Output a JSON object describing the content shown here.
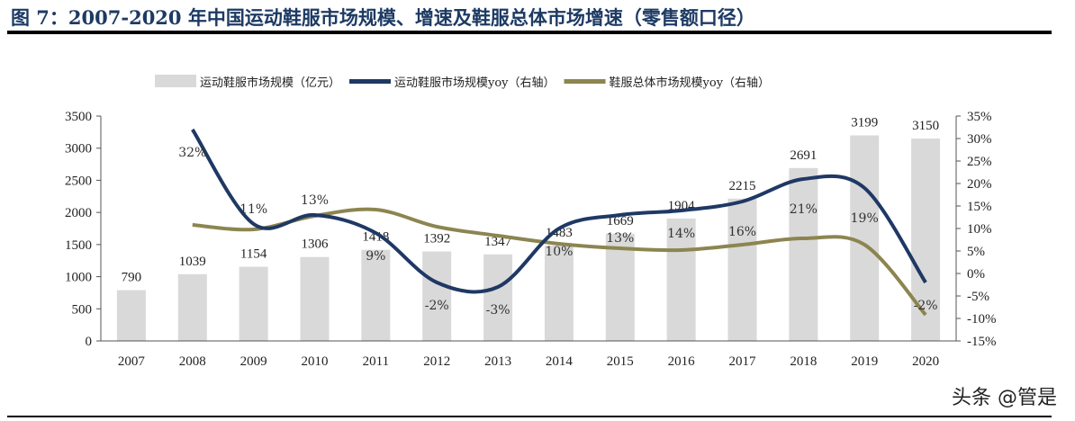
{
  "title": "图 7：2007-2020 年中国运动鞋服市场规模、增速及鞋服总体市场增速（零售额口径）",
  "watermark": "头条 @管是",
  "chart_data": {
    "type": "bar+line",
    "categories": [
      "2007",
      "2008",
      "2009",
      "2010",
      "2011",
      "2012",
      "2013",
      "2014",
      "2015",
      "2016",
      "2017",
      "2018",
      "2019",
      "2020"
    ],
    "series": [
      {
        "name": "运动鞋服市场规模（亿元）",
        "type": "bar",
        "axis": "left",
        "color": "#d9d9d9",
        "values": [
          790,
          1039,
          1154,
          1306,
          1418,
          1392,
          1347,
          1483,
          1669,
          1904,
          2215,
          2691,
          3199,
          3150
        ]
      },
      {
        "name": "运动鞋服市场规模yoy（右轴）",
        "type": "line",
        "axis": "right",
        "color": "#1f3864",
        "values": [
          null,
          32,
          11,
          13,
          9,
          -2,
          -3,
          10,
          13,
          14,
          16,
          21,
          19,
          -2
        ],
        "labels": [
          "",
          "32%",
          "11%",
          "13%",
          "9%",
          "-2%",
          "-3%",
          "10%",
          "13%",
          "14%",
          "16%",
          "21%",
          "19%",
          "-2%"
        ]
      },
      {
        "name": "鞋服总体市场规模yoy（右轴）",
        "type": "line",
        "axis": "right",
        "color": "#8c8550",
        "values": [
          null,
          10.8,
          9.8,
          12.8,
          14.2,
          10.4,
          8.4,
          6.6,
          5.6,
          5.2,
          6.4,
          7.8,
          6.4,
          -9.2
        ]
      }
    ],
    "ylim_left": [
      0,
      3500
    ],
    "yticks_left": [
      "0",
      "500",
      "1000",
      "1500",
      "2000",
      "2500",
      "3000",
      "3500"
    ],
    "ylim_right": [
      -15,
      35
    ],
    "yticks_right": [
      "-15%",
      "-10%",
      "-5%",
      "0%",
      "5%",
      "10%",
      "15%",
      "20%",
      "25%",
      "30%",
      "35%"
    ],
    "grid": false,
    "legend": "top"
  }
}
